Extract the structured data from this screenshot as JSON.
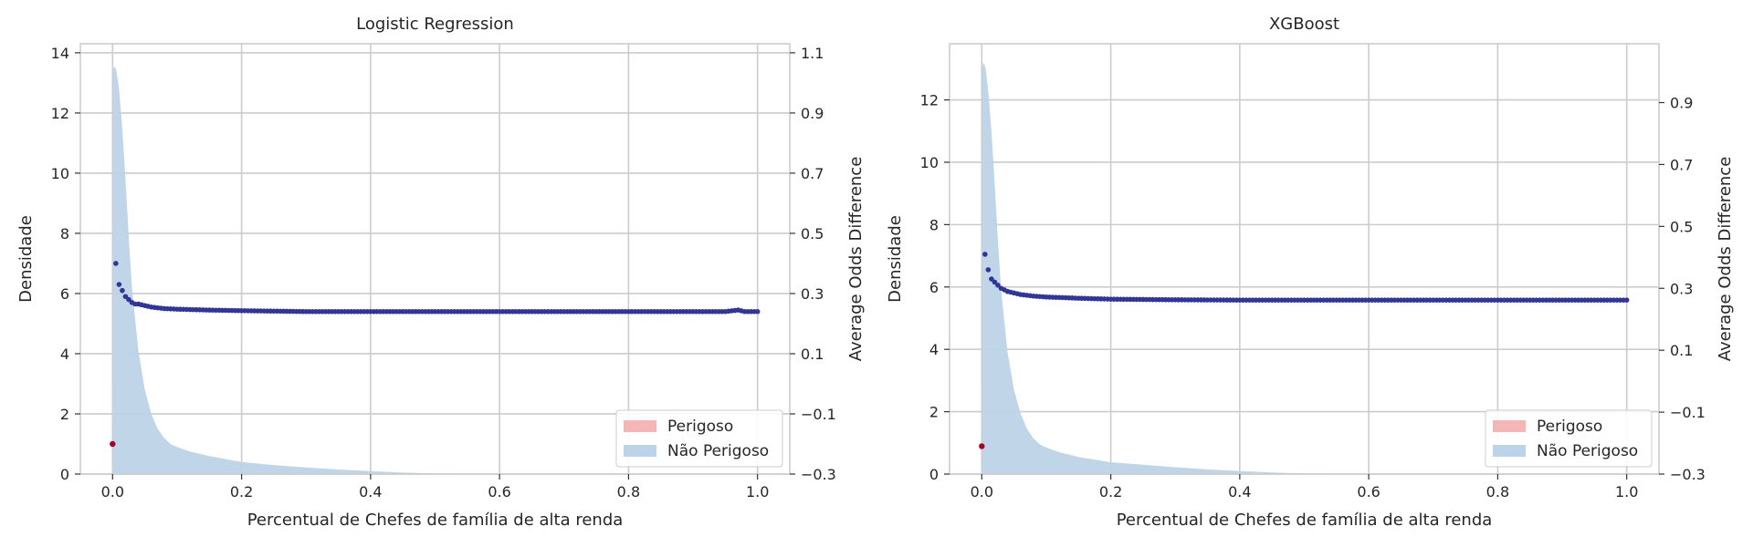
{
  "chart_data": [
    {
      "type": "area",
      "title": "Logistic Regression",
      "xlabel": "Percentual de Chefes de família de alta renda",
      "ylabel": "Densidade",
      "ylabel_right": "Average Odds Difference",
      "xlim": [
        -0.05,
        1.05
      ],
      "ylim": [
        0,
        14.3
      ],
      "ylim_right": [
        -0.3,
        1.13
      ],
      "x_ticks": [
        0.0,
        0.2,
        0.4,
        0.6,
        0.8,
        1.0
      ],
      "x_tick_labels": [
        "0.0",
        "0.2",
        "0.4",
        "0.6",
        "0.8",
        "1.0"
      ],
      "y_ticks": [
        0,
        2,
        4,
        6,
        8,
        10,
        12,
        14
      ],
      "y_tick_labels": [
        "0",
        "2",
        "4",
        "6",
        "8",
        "10",
        "12",
        "14"
      ],
      "y_right_ticks": [
        -0.3,
        -0.1,
        0.1,
        0.3,
        0.5,
        0.7,
        0.9,
        1.1
      ],
      "y_right_tick_labels": [
        "−0.3",
        "−0.1",
        "0.1",
        "0.3",
        "0.5",
        "0.7",
        "0.9",
        "1.1"
      ],
      "grid": true,
      "legend": {
        "placement": "bottom-right",
        "entries": [
          {
            "label": "Perigoso",
            "color": "#f4b6b6"
          },
          {
            "label": "Não Perigoso",
            "color": "#bdd3e7"
          }
        ]
      },
      "density_nao_perigoso": {
        "color": "#bdd3e7",
        "x": [
          0.0,
          0.003,
          0.006,
          0.01,
          0.015,
          0.02,
          0.025,
          0.03,
          0.04,
          0.05,
          0.06,
          0.07,
          0.08,
          0.09,
          0.1,
          0.12,
          0.15,
          0.2,
          0.25,
          0.3,
          0.35,
          0.4,
          0.45,
          0.5,
          0.6,
          0.7,
          0.8,
          0.9,
          1.0
        ],
        "y": [
          13.4,
          13.55,
          13.4,
          12.8,
          11.5,
          9.8,
          7.9,
          6.2,
          4.1,
          2.8,
          2.0,
          1.5,
          1.2,
          1.0,
          0.9,
          0.75,
          0.6,
          0.4,
          0.3,
          0.22,
          0.15,
          0.1,
          0.05,
          0.02,
          0.01,
          0.0,
          0.0,
          0.0,
          0.0
        ]
      },
      "density_perigoso": {
        "color": "#f4b6b6",
        "x": [
          0.0
        ],
        "y": [
          0.0
        ]
      },
      "aod_perigoso": {
        "color": "#a50026",
        "x": [
          0.0
        ],
        "y": [
          -0.2
        ]
      },
      "aod_nao_perigoso": {
        "color": "#313695",
        "x": [
          0.005,
          0.01,
          0.015,
          0.02,
          0.025,
          0.03,
          0.035,
          0.04,
          0.05,
          0.06,
          0.08,
          0.1,
          0.15,
          0.2,
          0.3,
          0.4,
          0.5,
          0.6,
          0.7,
          0.8,
          0.9,
          0.95,
          0.97,
          0.98,
          1.0
        ],
        "y": [
          0.4,
          0.33,
          0.31,
          0.29,
          0.28,
          0.27,
          0.265,
          0.265,
          0.26,
          0.255,
          0.25,
          0.248,
          0.245,
          0.243,
          0.24,
          0.24,
          0.24,
          0.24,
          0.24,
          0.24,
          0.24,
          0.24,
          0.245,
          0.24,
          0.24
        ]
      }
    },
    {
      "type": "area",
      "title": "XGBoost",
      "xlabel": "Percentual de Chefes de família de alta renda",
      "ylabel": "Densidade",
      "ylabel_right": "Average Odds Difference",
      "xlim": [
        -0.05,
        1.05
      ],
      "ylim": [
        0,
        13.8
      ],
      "ylim_right": [
        -0.3,
        1.09
      ],
      "x_ticks": [
        0.0,
        0.2,
        0.4,
        0.6,
        0.8,
        1.0
      ],
      "x_tick_labels": [
        "0.0",
        "0.2",
        "0.4",
        "0.6",
        "0.8",
        "1.0"
      ],
      "y_ticks": [
        0,
        2,
        4,
        6,
        8,
        10,
        12
      ],
      "y_tick_labels": [
        "0",
        "2",
        "4",
        "6",
        "8",
        "10",
        "12"
      ],
      "y_right_ticks": [
        -0.3,
        -0.1,
        0.1,
        0.3,
        0.5,
        0.7,
        0.9
      ],
      "y_right_tick_labels": [
        "−0.3",
        "−0.1",
        "0.1",
        "0.3",
        "0.5",
        "0.7",
        "0.9"
      ],
      "grid": true,
      "legend": {
        "placement": "bottom-right",
        "entries": [
          {
            "label": "Perigoso",
            "color": "#f4b6b6"
          },
          {
            "label": "Não Perigoso",
            "color": "#bdd3e7"
          }
        ]
      },
      "density_nao_perigoso": {
        "color": "#bdd3e7",
        "x": [
          0.0,
          0.003,
          0.006,
          0.01,
          0.015,
          0.02,
          0.025,
          0.03,
          0.04,
          0.05,
          0.06,
          0.07,
          0.08,
          0.09,
          0.1,
          0.12,
          0.15,
          0.2,
          0.25,
          0.3,
          0.35,
          0.4,
          0.45,
          0.5,
          0.6,
          0.7,
          0.8,
          0.9,
          1.0
        ],
        "y": [
          13.0,
          13.2,
          13.0,
          12.3,
          11.0,
          9.3,
          7.5,
          5.9,
          3.9,
          2.7,
          1.95,
          1.45,
          1.15,
          0.95,
          0.85,
          0.7,
          0.55,
          0.38,
          0.3,
          0.22,
          0.15,
          0.1,
          0.05,
          0.02,
          0.01,
          0.0,
          0.0,
          0.0,
          0.0
        ]
      },
      "density_perigoso": {
        "color": "#f4b6b6",
        "x": [
          0.0
        ],
        "y": [
          0.0
        ]
      },
      "aod_perigoso": {
        "color": "#a50026",
        "x": [
          0.0
        ],
        "y": [
          -0.21
        ]
      },
      "aod_nao_perigoso": {
        "color": "#313695",
        "x": [
          0.005,
          0.01,
          0.015,
          0.02,
          0.025,
          0.03,
          0.035,
          0.04,
          0.05,
          0.06,
          0.08,
          0.1,
          0.15,
          0.2,
          0.3,
          0.4,
          0.5,
          0.6,
          0.7,
          0.8,
          0.9,
          1.0
        ],
        "y": [
          0.41,
          0.36,
          0.33,
          0.32,
          0.31,
          0.3,
          0.295,
          0.29,
          0.285,
          0.28,
          0.275,
          0.272,
          0.268,
          0.265,
          0.263,
          0.262,
          0.262,
          0.262,
          0.262,
          0.262,
          0.262,
          0.262
        ]
      }
    }
  ]
}
